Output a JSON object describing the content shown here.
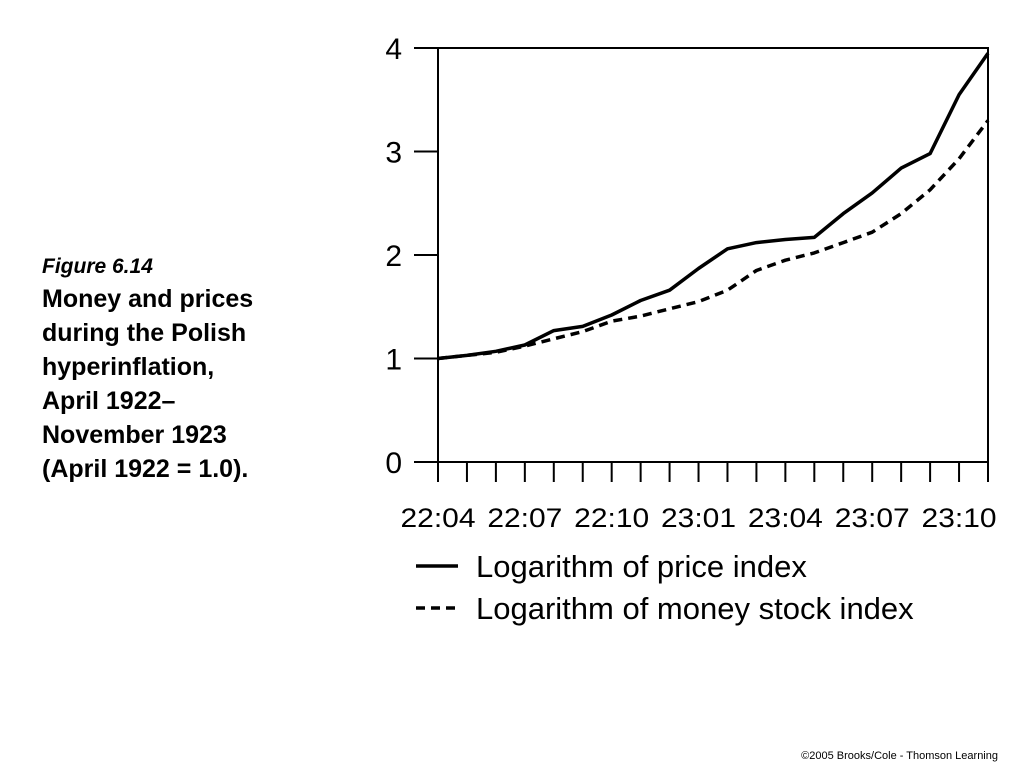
{
  "figure": {
    "label": "Figure 6.14",
    "title_lines": [
      "Money and prices",
      "during the Polish",
      "hyperinflation,",
      "April 1922–",
      "November 1923",
      "(April 1922 = 1.0)."
    ]
  },
  "copyright": "©2005 Brooks/Cole - Thomson Learning",
  "chart_data": {
    "type": "line",
    "title": "",
    "xlabel": "",
    "ylabel": "",
    "x": [
      "22:04",
      "22:05",
      "22:06",
      "22:07",
      "22:08",
      "22:09",
      "22:10",
      "22:11",
      "22:12",
      "23:01",
      "23:02",
      "23:03",
      "23:04",
      "23:05",
      "23:06",
      "23:07",
      "23:08",
      "23:09",
      "23:10",
      "23:11"
    ],
    "x_ticks": [
      "22:04",
      "22:07",
      "22:10",
      "23:01",
      "23:04",
      "23:07",
      "23:10"
    ],
    "ylim": [
      0,
      4
    ],
    "y_ticks": [
      "0",
      "1",
      "2",
      "3",
      "4"
    ],
    "grid": false,
    "legend_position": "bottom",
    "series": [
      {
        "name": "Logarithm of price index",
        "style": "solid",
        "color": "#000000",
        "values": [
          1.0,
          1.03,
          1.07,
          1.13,
          1.27,
          1.31,
          1.42,
          1.56,
          1.66,
          1.87,
          2.06,
          2.12,
          2.15,
          2.17,
          2.4,
          2.6,
          2.84,
          2.98,
          3.55,
          3.95
        ]
      },
      {
        "name": "Logarithm of money stock index",
        "style": "dashed",
        "color": "#000000",
        "values": [
          1.0,
          1.03,
          1.06,
          1.12,
          1.19,
          1.26,
          1.36,
          1.41,
          1.48,
          1.55,
          1.66,
          1.85,
          1.95,
          2.02,
          2.12,
          2.22,
          2.4,
          2.63,
          2.93,
          3.3
        ]
      }
    ]
  }
}
